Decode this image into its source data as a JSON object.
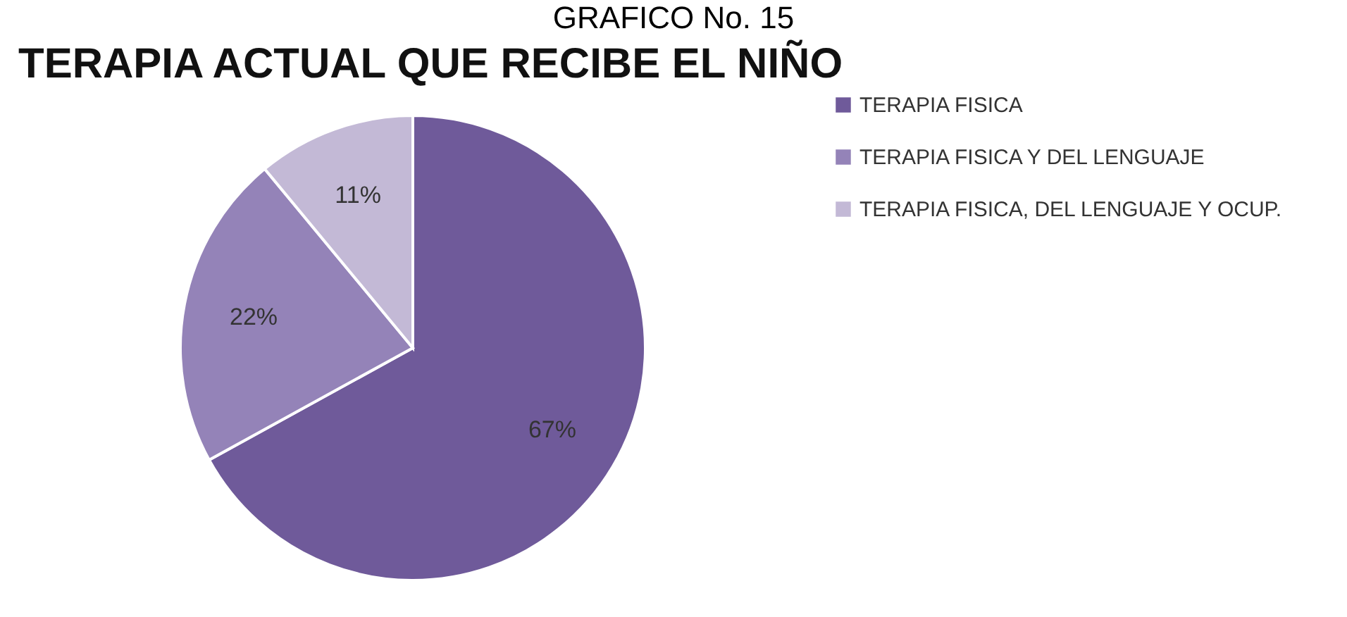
{
  "chart_data": {
    "type": "pie",
    "title": "TERAPIA ACTUAL QUE RECIBE EL NIÑO",
    "annotations": [
      "GRAFICO No. 15"
    ],
    "categories": [
      "TERAPIA FISICA",
      "TERAPIA FISICA Y DEL LENGUAJE",
      "TERAPIA FISICA, DEL LENGUAJE Y OCUP."
    ],
    "values": [
      67,
      22,
      11
    ],
    "colors": [
      "#6f5a9a",
      "#9483b8",
      "#c3b9d6"
    ],
    "value_labels": [
      "67%",
      "22%",
      "11%"
    ],
    "legend": "right"
  }
}
